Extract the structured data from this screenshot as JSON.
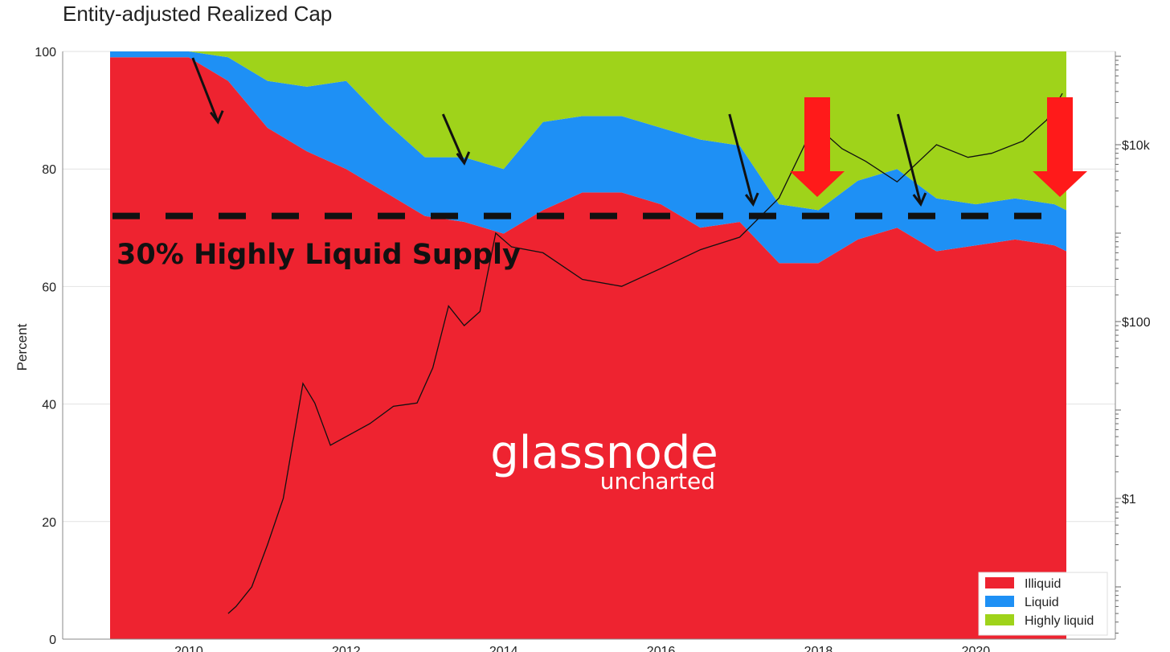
{
  "chart_data": {
    "type": "area",
    "title": "Entity-adjusted Realized Cap",
    "ylabel": "Percent",
    "ylim": [
      0,
      100
    ],
    "y_ticks": [
      "0",
      "20",
      "40",
      "60",
      "80",
      "100"
    ],
    "x_ticks": [
      "2010",
      "2012",
      "2014",
      "2016",
      "2018",
      "2020"
    ],
    "x_domain": [
      "2009-01",
      "2021-02"
    ],
    "right_axis": {
      "scale": "log",
      "ticks": [
        "$1",
        "$100",
        "$10k"
      ],
      "tick_values": [
        1,
        100,
        10000
      ]
    },
    "grid": true,
    "legend_position": "bottom-right",
    "colors": {
      "Illiquid": "#ee2330",
      "Liquid": "#1e90f5",
      "Highly liquid": "#9fd31a",
      "price": "#111111",
      "annotation_arrow": "#ff1a1a"
    },
    "x": [
      2009.0,
      2010.0,
      2010.5,
      2011.0,
      2011.5,
      2012.0,
      2012.5,
      2013.0,
      2013.5,
      2014.0,
      2014.5,
      2015.0,
      2015.5,
      2016.0,
      2016.5,
      2017.0,
      2017.5,
      2018.0,
      2018.5,
      2019.0,
      2019.5,
      2020.0,
      2020.5,
      2021.0,
      2021.15
    ],
    "series": [
      {
        "name": "Illiquid",
        "values": [
          99,
          99,
          95,
          87,
          83,
          80,
          76,
          72,
          71,
          69,
          73,
          76,
          76,
          74,
          70,
          71,
          64,
          64,
          68,
          70,
          66,
          67,
          68,
          67,
          66
        ]
      },
      {
        "name": "Liquid",
        "values": [
          1,
          1,
          4,
          8,
          11,
          15,
          12,
          10,
          11,
          11,
          15,
          13,
          13,
          13,
          15,
          13,
          10,
          9,
          10,
          10,
          9,
          7,
          7,
          7,
          7
        ]
      },
      {
        "name": "Highly liquid",
        "values": [
          0,
          0,
          1,
          5,
          6,
          5,
          12,
          18,
          18,
          20,
          12,
          11,
          11,
          13,
          15,
          16,
          26,
          27,
          22,
          20,
          25,
          26,
          25,
          26,
          27
        ]
      }
    ],
    "price_series": {
      "x": [
        2010.5,
        2010.6,
        2010.8,
        2011.0,
        2011.2,
        2011.45,
        2011.6,
        2011.8,
        2012.0,
        2012.3,
        2012.6,
        2012.9,
        2013.1,
        2013.3,
        2013.5,
        2013.7,
        2013.9,
        2014.1,
        2014.5,
        2015.0,
        2015.5,
        2016.0,
        2016.5,
        2017.0,
        2017.5,
        2017.95,
        2018.3,
        2018.6,
        2019.0,
        2019.5,
        2019.9,
        2020.2,
        2020.6,
        2020.9,
        2021.1
      ],
      "values": [
        0.05,
        0.06,
        0.1,
        0.3,
        1.0,
        20,
        12,
        4,
        5,
        7,
        11,
        12,
        30,
        150,
        90,
        130,
        1000,
        700,
        600,
        300,
        250,
        400,
        650,
        900,
        2500,
        17000,
        9000,
        6500,
        3800,
        10000,
        7200,
        8000,
        11000,
        19000,
        38000
      ]
    },
    "annotations": [
      "30% Highly Liquid Supply"
    ],
    "threshold_line": 72
  },
  "brand": {
    "main": "glassnode",
    "sub": "uncharted"
  },
  "legend": [
    {
      "label": "Illiquid",
      "color": "#ee2330"
    },
    {
      "label": "Liquid",
      "color": "#1e90f5"
    },
    {
      "label": "Highly liquid",
      "color": "#9fd31a"
    }
  ]
}
